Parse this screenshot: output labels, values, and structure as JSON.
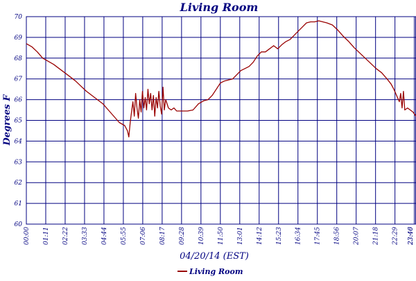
{
  "chart_data": {
    "type": "line",
    "title": "Living Room",
    "xlabel": "04/20/14 (EST)",
    "ylabel": "Degrees F",
    "ylim": [
      60,
      70
    ],
    "y_ticks": [
      "60",
      "61",
      "62",
      "63",
      "64",
      "65",
      "66",
      "67",
      "68",
      "69",
      "70"
    ],
    "x_ticks": [
      "00:00",
      "01:11",
      "02:22",
      "03:33",
      "04:44",
      "05:55",
      "07:06",
      "08:17",
      "09:28",
      "10:39",
      "11:50",
      "13:01",
      "14:12",
      "15:23",
      "16:34",
      "17:45",
      "18:56",
      "20:07",
      "21:18",
      "22:29",
      "23:40",
      "23:46"
    ],
    "grid": true,
    "legend_position": "bottom",
    "series": [
      {
        "name": "Living Room",
        "color": "#990000",
        "points": [
          [
            "00:00",
            68.7
          ],
          [
            "00:20",
            68.55
          ],
          [
            "00:40",
            68.3
          ],
          [
            "01:00",
            68.0
          ],
          [
            "01:20",
            67.85
          ],
          [
            "01:40",
            67.7
          ],
          [
            "02:00",
            67.5
          ],
          [
            "02:20",
            67.3
          ],
          [
            "02:40",
            67.1
          ],
          [
            "03:00",
            66.9
          ],
          [
            "03:20",
            66.65
          ],
          [
            "03:40",
            66.4
          ],
          [
            "04:00",
            66.2
          ],
          [
            "04:20",
            66.0
          ],
          [
            "04:40",
            65.8
          ],
          [
            "05:00",
            65.5
          ],
          [
            "05:20",
            65.2
          ],
          [
            "05:40",
            64.9
          ],
          [
            "06:00",
            64.75
          ],
          [
            "06:10",
            64.5
          ],
          [
            "06:15",
            64.2
          ],
          [
            "06:20",
            64.9
          ],
          [
            "06:25",
            65.4
          ],
          [
            "06:30",
            65.9
          ],
          [
            "06:35",
            65.2
          ],
          [
            "06:40",
            66.3
          ],
          [
            "06:45",
            65.6
          ],
          [
            "06:50",
            65.1
          ],
          [
            "06:55",
            66.0
          ],
          [
            "07:00",
            65.4
          ],
          [
            "07:05",
            66.4
          ],
          [
            "07:10",
            65.6
          ],
          [
            "07:15",
            66.1
          ],
          [
            "07:20",
            65.5
          ],
          [
            "07:25",
            66.5
          ],
          [
            "07:30",
            65.8
          ],
          [
            "07:35",
            66.3
          ],
          [
            "07:40",
            65.5
          ],
          [
            "07:45",
            66.2
          ],
          [
            "07:50",
            65.2
          ],
          [
            "07:55",
            66.1
          ],
          [
            "08:00",
            65.6
          ],
          [
            "08:05",
            66.4
          ],
          [
            "08:10",
            65.7
          ],
          [
            "08:15",
            65.3
          ],
          [
            "08:20",
            66.6
          ],
          [
            "08:25",
            65.5
          ],
          [
            "08:30",
            66.0
          ],
          [
            "08:40",
            65.6
          ],
          [
            "08:50",
            65.5
          ],
          [
            "09:00",
            65.6
          ],
          [
            "09:10",
            65.45
          ],
          [
            "09:30",
            65.45
          ],
          [
            "09:50",
            65.45
          ],
          [
            "10:10",
            65.5
          ],
          [
            "10:30",
            65.8
          ],
          [
            "10:50",
            65.95
          ],
          [
            "11:05",
            66.0
          ],
          [
            "11:20",
            66.2
          ],
          [
            "11:35",
            66.5
          ],
          [
            "11:50",
            66.8
          ],
          [
            "12:05",
            66.9
          ],
          [
            "12:20",
            66.95
          ],
          [
            "12:35",
            67.0
          ],
          [
            "12:50",
            67.2
          ],
          [
            "13:05",
            67.4
          ],
          [
            "13:20",
            67.5
          ],
          [
            "13:35",
            67.6
          ],
          [
            "13:50",
            67.8
          ],
          [
            "14:05",
            68.1
          ],
          [
            "14:20",
            68.3
          ],
          [
            "14:35",
            68.3
          ],
          [
            "14:50",
            68.45
          ],
          [
            "15:05",
            68.6
          ],
          [
            "15:20",
            68.45
          ],
          [
            "15:35",
            68.65
          ],
          [
            "15:50",
            68.8
          ],
          [
            "16:05",
            68.9
          ],
          [
            "16:20",
            69.1
          ],
          [
            "16:35",
            69.3
          ],
          [
            "16:50",
            69.5
          ],
          [
            "17:05",
            69.7
          ],
          [
            "17:20",
            69.75
          ],
          [
            "17:35",
            69.75
          ],
          [
            "17:50",
            69.8
          ],
          [
            "18:05",
            69.75
          ],
          [
            "18:20",
            69.7
          ],
          [
            "18:40",
            69.6
          ],
          [
            "19:00",
            69.35
          ],
          [
            "19:20",
            69.05
          ],
          [
            "19:40",
            68.8
          ],
          [
            "20:00",
            68.5
          ],
          [
            "20:20",
            68.25
          ],
          [
            "20:40",
            68.0
          ],
          [
            "21:00",
            67.75
          ],
          [
            "21:20",
            67.5
          ],
          [
            "21:40",
            67.3
          ],
          [
            "22:00",
            67.0
          ],
          [
            "22:15",
            66.75
          ],
          [
            "22:25",
            66.5
          ],
          [
            "22:35",
            66.2
          ],
          [
            "22:45",
            65.9
          ],
          [
            "22:50",
            66.3
          ],
          [
            "22:55",
            65.6
          ],
          [
            "23:00",
            66.4
          ],
          [
            "23:05",
            65.5
          ],
          [
            "23:15",
            65.6
          ],
          [
            "23:25",
            65.5
          ],
          [
            "23:35",
            65.4
          ],
          [
            "23:46",
            65.2
          ]
        ]
      }
    ]
  }
}
